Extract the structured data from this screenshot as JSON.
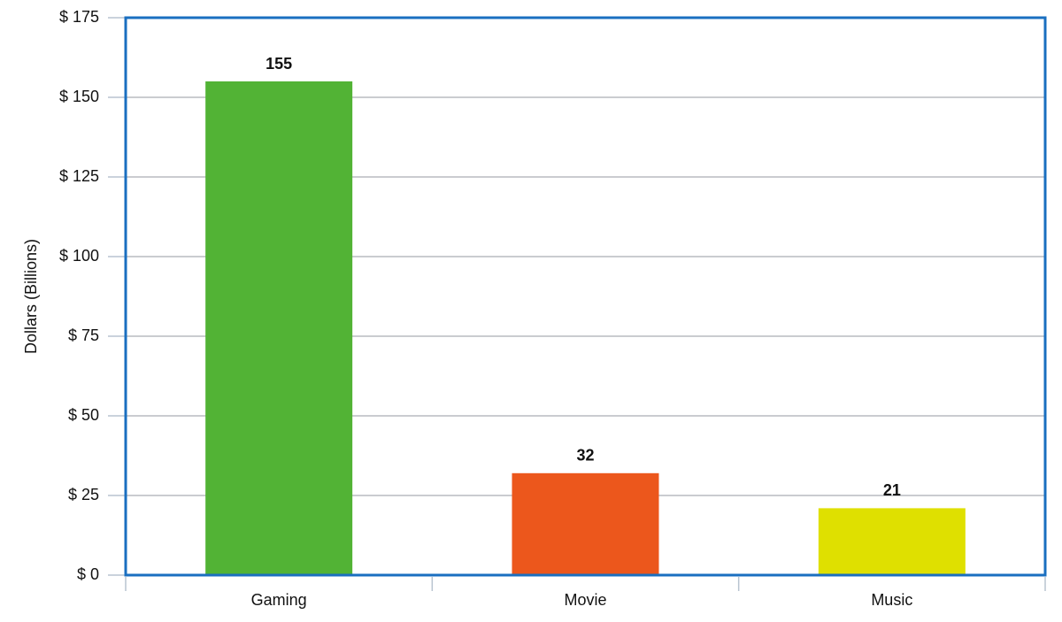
{
  "chart_data": {
    "type": "bar",
    "y_label": "Dollars (Billions)",
    "categories": [
      "Gaming",
      "Movie",
      "Music"
    ],
    "values": [
      155,
      32,
      21
    ],
    "colors": [
      "#52b335",
      "#ec571c",
      "#dfe000"
    ],
    "ylim": [
      0,
      175
    ],
    "yticks": [
      {
        "value": 0,
        "label": "$ 0"
      },
      {
        "value": 25,
        "label": "$ 25"
      },
      {
        "value": 50,
        "label": "$ 50"
      },
      {
        "value": 75,
        "label": "$ 75"
      },
      {
        "value": 100,
        "label": "$ 100"
      },
      {
        "value": 125,
        "label": "$ 125"
      },
      {
        "value": 150,
        "label": "$ 150"
      },
      {
        "value": 175,
        "label": "$ 175"
      }
    ],
    "grid": true
  }
}
